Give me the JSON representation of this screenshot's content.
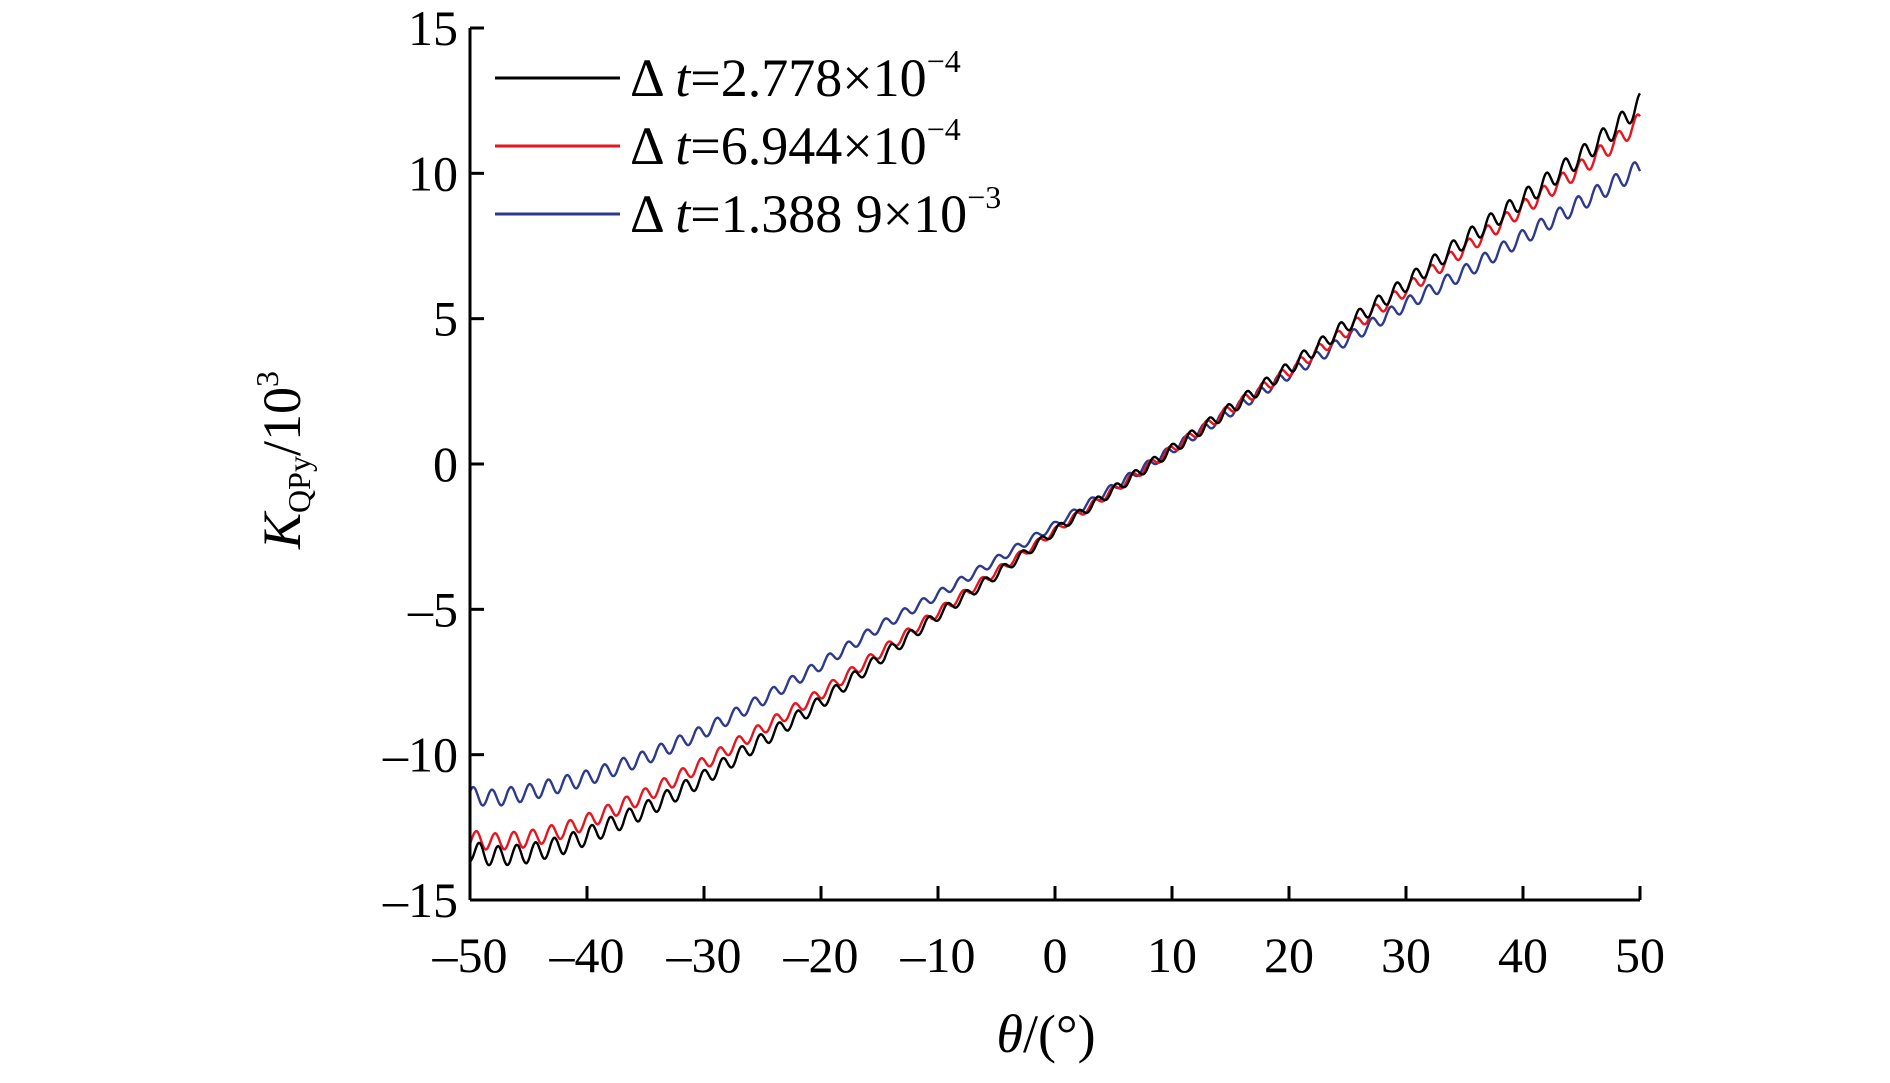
{
  "chart_data": {
    "type": "line",
    "title": "",
    "xlabel": {
      "symbol": "θ",
      "unit": "/(°)"
    },
    "ylabel": {
      "symbol": "K",
      "subscript": "QPy",
      "rest": "/10",
      "superscript": "3"
    },
    "xlim": [
      -50,
      50
    ],
    "ylim": [
      -15,
      15
    ],
    "xticks": [
      -50,
      -40,
      -30,
      -20,
      -10,
      0,
      10,
      20,
      30,
      40,
      50
    ],
    "yticks": [
      -15,
      -10,
      -5,
      0,
      5,
      10,
      15
    ],
    "xtick_labels": [
      "–50",
      "–40",
      "–30",
      "–20",
      "–10",
      "0",
      "10",
      "20",
      "30",
      "40",
      "50"
    ],
    "ytick_labels": [
      "–15",
      "–10",
      "–5",
      "0",
      "5",
      "10",
      "15"
    ],
    "grid": false,
    "legend_position": "top-left",
    "series": [
      {
        "name": "Δ t=2.778×10−4",
        "legend": {
          "prefix": "Δ ",
          "var": "t",
          "eq": "=2.778×10",
          "exp": "−4"
        },
        "color": "#000000",
        "oscillation": 0.35,
        "x": [
          -50,
          -48,
          -45,
          -42,
          -40,
          -35,
          -30,
          -25,
          -20,
          -15,
          -10,
          -5,
          0,
          5,
          10,
          15,
          20,
          25,
          30,
          35,
          40,
          45,
          48,
          50
        ],
        "y": [
          -13.3,
          -13.5,
          -13.4,
          -13.1,
          -12.8,
          -11.9,
          -10.8,
          -9.5,
          -8.2,
          -6.7,
          -5.2,
          -3.8,
          -2.3,
          -0.9,
          0.5,
          1.9,
          3.3,
          4.8,
          6.2,
          7.7,
          9.1,
          10.6,
          11.6,
          12.4
        ]
      },
      {
        "name": "Δ t=6.944×10−4",
        "legend": {
          "prefix": "Δ ",
          "var": "t",
          "eq": "=6.944×10",
          "exp": "−4"
        },
        "color": "#e8141e",
        "oscillation": 0.3,
        "x": [
          -50,
          -48,
          -45,
          -42,
          -40,
          -35,
          -30,
          -25,
          -20,
          -15,
          -10,
          -5,
          0,
          5,
          10,
          15,
          20,
          25,
          30,
          35,
          40,
          45,
          48,
          50
        ],
        "y": [
          -12.9,
          -13.0,
          -12.9,
          -12.6,
          -12.3,
          -11.4,
          -10.3,
          -9.1,
          -7.9,
          -6.5,
          -5.1,
          -3.7,
          -2.3,
          -0.9,
          0.5,
          1.9,
          3.2,
          4.6,
          6.0,
          7.4,
          8.8,
          10.2,
          11.1,
          11.8
        ]
      },
      {
        "name": "Δ t=1.388 9×10−3",
        "legend": {
          "prefix": "Δ ",
          "var": "t",
          "eq": "=1.388 9×10",
          "exp": "−3"
        },
        "color": "#2e3a8c",
        "oscillation": 0.3,
        "x": [
          -50,
          -48,
          -45,
          -42,
          -40,
          -35,
          -30,
          -25,
          -20,
          -15,
          -10,
          -5,
          0,
          5,
          10,
          15,
          20,
          25,
          30,
          35,
          40,
          45,
          48,
          50
        ],
        "y": [
          -11.4,
          -11.5,
          -11.3,
          -11.0,
          -10.8,
          -10.1,
          -9.2,
          -8.1,
          -6.9,
          -5.6,
          -4.5,
          -3.3,
          -2.1,
          -0.8,
          0.5,
          1.8,
          3.1,
          4.3,
          5.5,
          6.6,
          7.8,
          9.0,
          9.7,
          10.2
        ]
      }
    ]
  }
}
